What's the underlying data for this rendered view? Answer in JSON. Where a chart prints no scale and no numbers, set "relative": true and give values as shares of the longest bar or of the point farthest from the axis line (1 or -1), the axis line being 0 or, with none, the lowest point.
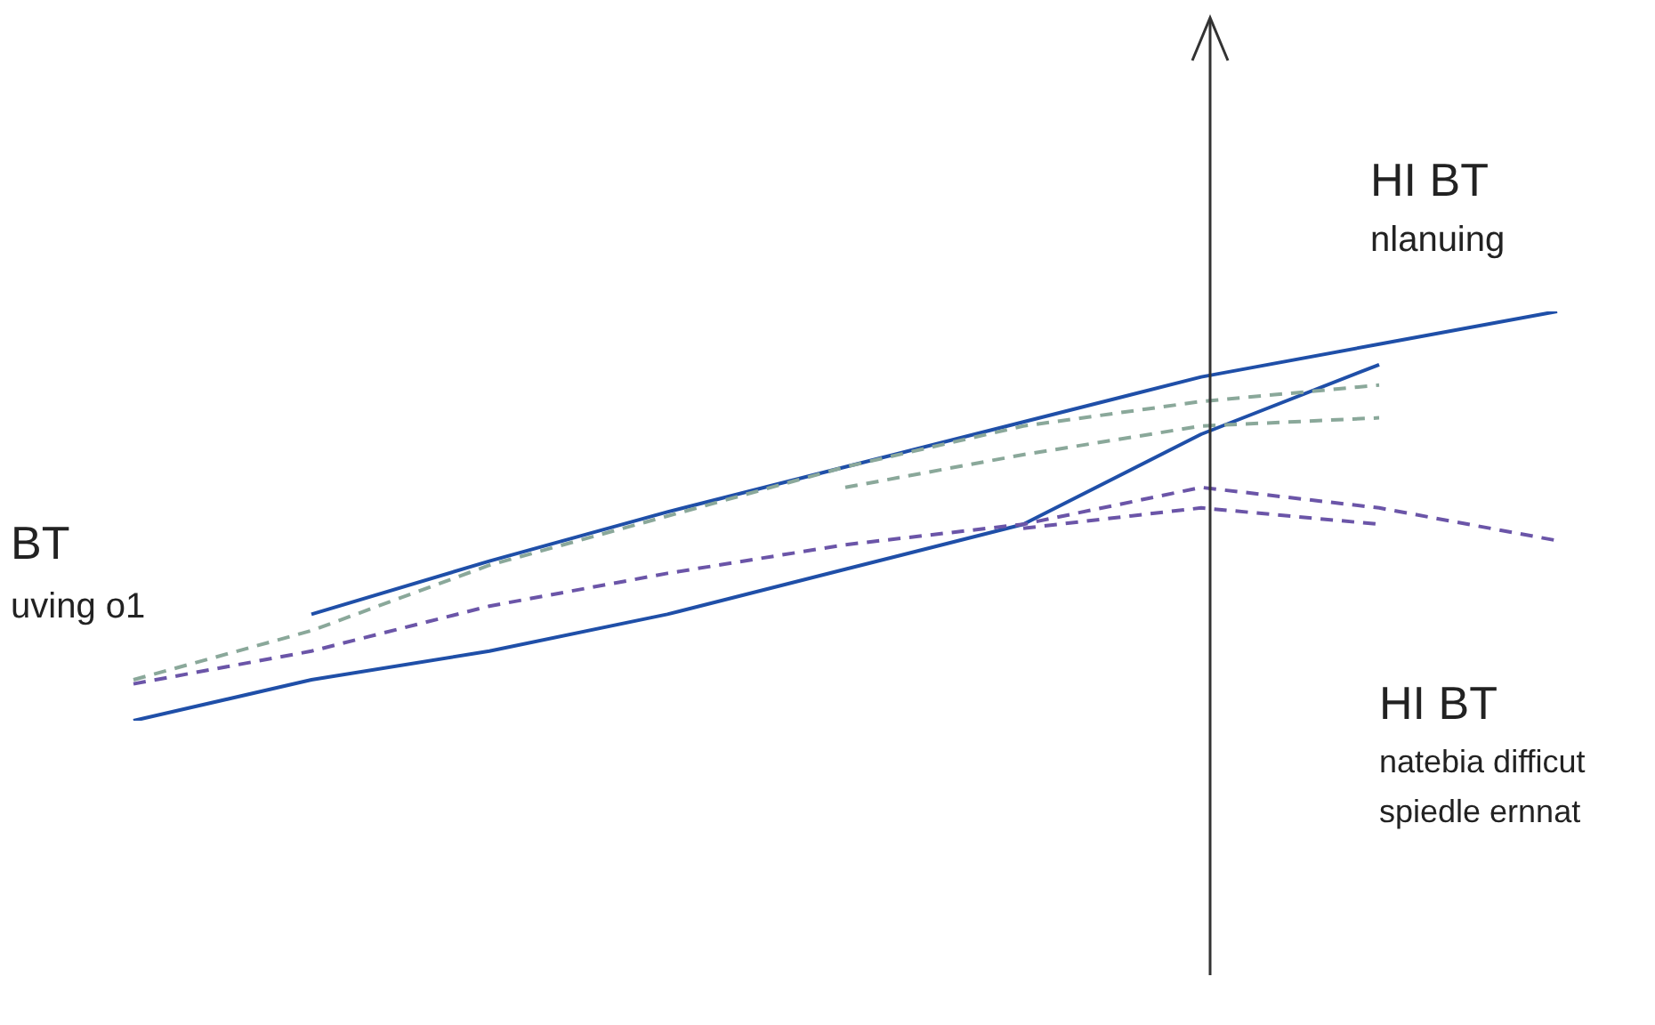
{
  "chart_data": {
    "type": "line",
    "relative": true,
    "categories": [
      null,
      null,
      null,
      null,
      null,
      null,
      null,
      null,
      null
    ],
    "series": [
      {
        "color": "#1f4fa8",
        "line_style": "solid",
        "values": [
          null,
          0.26,
          0.39,
          0.51,
          0.62,
          0.73,
          0.84,
          0.92,
          1
        ]
      },
      {
        "color": "#1f4fa8",
        "line_style": "solid",
        "values": [
          0,
          0.1,
          0.17,
          0.26,
          0.37,
          0.48,
          0.7,
          0.87,
          null
        ]
      },
      {
        "color": "#8aa89a",
        "line_style": "dashed",
        "values": [
          0.1,
          0.22,
          0.38,
          0.5,
          0.62,
          0.72,
          0.78,
          0.82,
          null
        ]
      },
      {
        "color": "#8aa89a",
        "line_style": "dashed",
        "values": [
          null,
          null,
          null,
          null,
          0.57,
          0.65,
          0.72,
          0.74,
          null
        ]
      },
      {
        "color": "#6b55a8",
        "line_style": "dashed",
        "values": [
          0.09,
          0.17,
          0.28,
          0.36,
          0.43,
          0.48,
          0.57,
          0.52,
          0.44
        ]
      },
      {
        "color": "#6b55a8",
        "line_style": "dashed",
        "values": [
          null,
          null,
          null,
          null,
          null,
          0.47,
          0.52,
          0.48,
          null
        ]
      }
    ],
    "annotations": [
      "BT",
      "uving o1",
      "HI BT",
      "nlanuing",
      "HI BT",
      "natebia difficut",
      "spiedle ernnat"
    ]
  }
}
